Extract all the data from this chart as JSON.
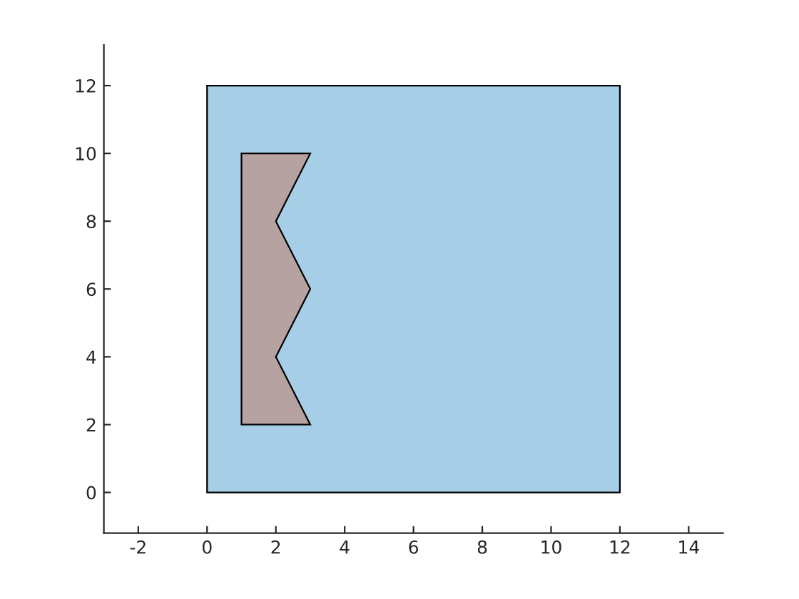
{
  "chart_data": {
    "type": "area",
    "series": [
      {
        "color": "#a6cee6",
        "x": [
          0,
          12,
          12,
          0
        ],
        "values": [
          0,
          0,
          12,
          12
        ]
      },
      {
        "color": "#b6a2a0",
        "x": [
          1,
          3,
          2,
          3,
          2,
          3,
          1
        ],
        "values": [
          2,
          2,
          4,
          6,
          8,
          10,
          10
        ]
      }
    ],
    "xlim": [
      -3,
      15
    ],
    "xticks": [
      -2,
      0,
      2,
      4,
      6,
      8,
      10,
      12,
      14
    ],
    "ylim": [
      -1.2,
      13.2
    ],
    "yticks": [
      0,
      2,
      4,
      6,
      8,
      10,
      12
    ],
    "grid": false,
    "legend": false
  }
}
